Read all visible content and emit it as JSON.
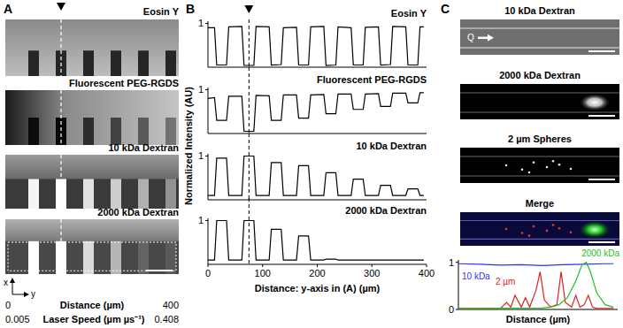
{
  "figure": {
    "panel_a": {
      "label": "A",
      "images": [
        "Eosin Y",
        "Fluorescent PEG-RGDS",
        "10 kDa Dextran",
        "2000 kDa Dextran"
      ],
      "axis_x": "x",
      "axis_y": "y",
      "distance": {
        "start": 0,
        "label": "Distance (µm)",
        "end": 400
      },
      "laser_speed": {
        "start": 0.005,
        "label": "Laser Speed (µm µs⁻¹)",
        "end": 0.408
      }
    },
    "panel_b": {
      "label": "B",
      "y_label": "Normalized Intensity (AU)"
    },
    "panel_c": {
      "label": "C",
      "images": [
        "10 kDa Dextran",
        "2000 kDa Dextran",
        "2 µm Spheres",
        "Merge"
      ],
      "flow_label": "Q"
    }
  },
  "chart_data": [
    {
      "type": "line",
      "title": "Eosin Y",
      "xlim": [
        0,
        400
      ],
      "ylim": [
        0,
        1.05
      ],
      "yticks": [
        1
      ],
      "tick_labels": "y",
      "annotations": [
        {
          "x": 75,
          "line_style": "dashed",
          "marker": "triangle"
        }
      ],
      "x": [
        0,
        12,
        16,
        34,
        38,
        62,
        66,
        84,
        88,
        112,
        116,
        134,
        138,
        162,
        166,
        184,
        188,
        212,
        216,
        234,
        238,
        262,
        266,
        284,
        288,
        312,
        316,
        334,
        338,
        362,
        366,
        384,
        388,
        395
      ],
      "series": [
        {
          "color": "#000000",
          "values": [
            0.9,
            0.9,
            0.05,
            0.05,
            0.92,
            0.93,
            0.04,
            0.04,
            0.93,
            0.92,
            0.05,
            0.06,
            0.9,
            0.91,
            0.05,
            0.05,
            0.92,
            0.93,
            0.04,
            0.05,
            0.92,
            0.9,
            0.05,
            0.05,
            0.91,
            0.92,
            0.05,
            0.06,
            0.93,
            0.92,
            0.05,
            0.05,
            0.92,
            0.92
          ]
        }
      ]
    },
    {
      "type": "line",
      "title": "Fluorescent PEG-RGDS",
      "xlim": [
        0,
        400
      ],
      "ylim": [
        0,
        1.05
      ],
      "yticks": [
        1
      ],
      "tick_labels": "y",
      "annotations": [
        {
          "x": 75,
          "line_style": "dashed"
        }
      ],
      "x": [
        0,
        12,
        16,
        34,
        38,
        62,
        66,
        84,
        88,
        112,
        116,
        134,
        138,
        162,
        166,
        184,
        188,
        212,
        216,
        234,
        238,
        262,
        266,
        284,
        288,
        312,
        316,
        334,
        338,
        362,
        366,
        384,
        388,
        395
      ],
      "series": [
        {
          "color": "#000000",
          "values": [
            0.8,
            0.82,
            0.3,
            0.3,
            0.85,
            0.85,
            0.05,
            0.05,
            0.87,
            0.86,
            0.3,
            0.3,
            0.88,
            0.88,
            0.35,
            0.35,
            0.88,
            0.89,
            0.45,
            0.45,
            0.9,
            0.9,
            0.55,
            0.55,
            0.9,
            0.91,
            0.62,
            0.62,
            0.92,
            0.92,
            0.7,
            0.7,
            0.93,
            0.93
          ]
        }
      ]
    },
    {
      "type": "line",
      "title": "10 kDa Dextran",
      "xlim": [
        0,
        400
      ],
      "ylim": [
        0,
        1.05
      ],
      "yticks": [
        1
      ],
      "tick_labels": "y",
      "annotations": [
        {
          "x": 75,
          "line_style": "dashed"
        }
      ],
      "x": [
        0,
        12,
        16,
        34,
        38,
        62,
        66,
        84,
        88,
        112,
        116,
        134,
        138,
        162,
        166,
        184,
        188,
        212,
        216,
        234,
        238,
        262,
        266,
        284,
        288,
        312,
        316,
        334,
        338,
        362,
        366,
        384,
        388,
        395
      ],
      "series": [
        {
          "color": "#000000",
          "values": [
            0.1,
            0.1,
            0.95,
            0.95,
            0.1,
            0.1,
            1.0,
            1.0,
            0.1,
            0.1,
            0.85,
            0.85,
            0.1,
            0.1,
            0.78,
            0.78,
            0.1,
            0.1,
            0.62,
            0.62,
            0.1,
            0.1,
            0.47,
            0.47,
            0.1,
            0.1,
            0.33,
            0.33,
            0.1,
            0.1,
            0.25,
            0.25,
            0.1,
            0.1
          ]
        }
      ]
    },
    {
      "type": "line",
      "title": "2000 kDa Dextran",
      "xlim": [
        0,
        400
      ],
      "ylim": [
        0,
        1.05
      ],
      "yticks": [
        1
      ],
      "xticks": [
        0,
        100,
        200,
        300,
        400
      ],
      "tick_labels": true,
      "x_label": "Distance: y-axis in (A) (µm)",
      "annotations": [
        {
          "x": 75,
          "line_style": "dashed"
        }
      ],
      "x": [
        0,
        12,
        16,
        34,
        38,
        62,
        66,
        84,
        88,
        112,
        116,
        134,
        138,
        162,
        166,
        184,
        188,
        212,
        216,
        234,
        238,
        262,
        266,
        284,
        288,
        312,
        316,
        334,
        338,
        362,
        366,
        384,
        388,
        395
      ],
      "series": [
        {
          "color": "#000000",
          "values": [
            0.1,
            0.1,
            1.0,
            1.0,
            0.1,
            0.1,
            1.0,
            1.0,
            0.1,
            0.1,
            0.8,
            0.8,
            0.1,
            0.1,
            0.65,
            0.65,
            0.1,
            0.1,
            0.12,
            0.12,
            0.1,
            0.1,
            0.1,
            0.1,
            0.1,
            0.1,
            0.1,
            0.1,
            0.1,
            0.1,
            0.1,
            0.1,
            0.1,
            0.1
          ]
        }
      ]
    },
    {
      "type": "line",
      "xlim": [
        0,
        380
      ],
      "ylim": [
        0,
        1.05
      ],
      "yticks": [
        0,
        1
      ],
      "tick_labels": "y",
      "x_label": "Distance (µm)",
      "series": [
        {
          "name": "10 kDa",
          "color": "#3030ff",
          "x": [
            0,
            50,
            100,
            150,
            200,
            250,
            300,
            350,
            370
          ],
          "values": [
            0.97,
            0.96,
            0.94,
            0.95,
            0.93,
            0.95,
            0.96,
            0.97,
            0.97
          ]
        },
        {
          "name": "2 µm",
          "color": "#e02020",
          "x": [
            0,
            100,
            115,
            125,
            135,
            150,
            160,
            170,
            185,
            195,
            205,
            220,
            235,
            245,
            255,
            270,
            280,
            290,
            300,
            310,
            320,
            330,
            370
          ],
          "values": [
            0.02,
            0.02,
            0.15,
            0.05,
            0.3,
            0.05,
            0.25,
            0.05,
            0.4,
            0.8,
            0.2,
            0.05,
            0.1,
            0.8,
            0.15,
            0.05,
            0.3,
            0.05,
            0.1,
            0.3,
            0.05,
            0.02,
            0.02
          ]
        },
        {
          "name": "2000 kDa",
          "color": "#20c020",
          "x": [
            0,
            200,
            220,
            240,
            260,
            280,
            295,
            305,
            315,
            330,
            350,
            370
          ],
          "values": [
            0.02,
            0.03,
            0.05,
            0.1,
            0.25,
            0.6,
            0.95,
            1.0,
            0.8,
            0.35,
            0.1,
            0.05
          ]
        }
      ]
    }
  ]
}
